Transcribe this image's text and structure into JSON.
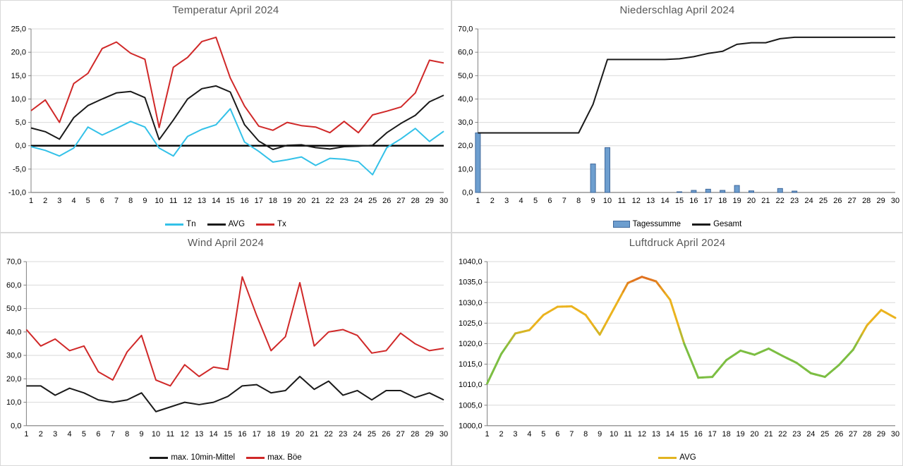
{
  "layout_colors": {
    "background": "#FFFFFF",
    "panel_border": "#D9D9D9",
    "grid": "#D9D9D9",
    "axis": "#808080",
    "title": "#595959",
    "text": "#000000"
  },
  "chart_data": [
    {
      "type": "line",
      "title": "Temperatur April 2024",
      "xlabel": "",
      "ylabel": "",
      "ylim": [
        -10,
        25
      ],
      "ytick_labels": [
        "25,0",
        "20,0",
        "15,0",
        "10,0",
        "5,0",
        "0,0",
        "-5,0",
        "-10,0"
      ],
      "ytick_values": [
        25,
        20,
        15,
        10,
        5,
        0,
        -5,
        -10
      ],
      "zero_axis": true,
      "grid": true,
      "legend_position": "bottom",
      "categories": [
        "1",
        "2",
        "3",
        "4",
        "5",
        "6",
        "7",
        "8",
        "9",
        "10",
        "11",
        "12",
        "13",
        "14",
        "15",
        "16",
        "17",
        "18",
        "19",
        "20",
        "21",
        "22",
        "23",
        "24",
        "25",
        "26",
        "27",
        "28",
        "29",
        "30"
      ],
      "series": [
        {
          "name": "Tn",
          "type": "line",
          "color": "#33C1E8",
          "values": [
            -0.2,
            -1.0,
            -2.2,
            -0.5,
            4.0,
            2.3,
            3.7,
            5.2,
            4.0,
            -0.5,
            -2.2,
            2.0,
            3.5,
            4.5,
            7.9,
            0.8,
            -1.2,
            -3.5,
            -3.0,
            -2.4,
            -4.2,
            -2.7,
            -2.9,
            -3.4,
            -6.2,
            -0.4,
            1.5,
            3.7,
            0.9,
            3.1
          ]
        },
        {
          "name": "AVG",
          "type": "line",
          "color": "#1A1A1A",
          "values": [
            3.8,
            3.0,
            1.4,
            6.0,
            8.6,
            10.0,
            11.3,
            11.6,
            10.3,
            1.3,
            5.5,
            10.0,
            12.2,
            12.8,
            11.5,
            4.5,
            1.0,
            -0.8,
            0.1,
            0.2,
            -0.4,
            -0.7,
            -0.2,
            -0.1,
            0.1,
            2.8,
            4.8,
            6.5,
            9.4,
            10.8
          ]
        },
        {
          "name": "Tx",
          "type": "line",
          "color": "#D02828",
          "values": [
            7.5,
            9.8,
            5.0,
            13.3,
            15.5,
            20.8,
            22.2,
            19.8,
            18.5,
            3.9,
            16.8,
            18.9,
            22.3,
            23.2,
            14.5,
            8.5,
            4.2,
            3.3,
            5.0,
            4.3,
            4.0,
            2.8,
            5.2,
            2.8,
            6.6,
            7.4,
            8.3,
            11.3,
            18.3,
            17.7
          ]
        }
      ]
    },
    {
      "type": "bar",
      "title": "Niederschlag April 2024",
      "xlabel": "",
      "ylabel": "",
      "ylim": [
        0,
        70
      ],
      "ytick_labels": [
        "70,0",
        "60,0",
        "50,0",
        "40,0",
        "30,0",
        "20,0",
        "10,0",
        "0,0"
      ],
      "ytick_values": [
        70,
        60,
        50,
        40,
        30,
        20,
        10,
        0
      ],
      "zero_axis": false,
      "grid": true,
      "legend_position": "bottom",
      "categories": [
        "1",
        "2",
        "3",
        "4",
        "5",
        "6",
        "7",
        "8",
        "9",
        "10",
        "11",
        "12",
        "13",
        "14",
        "15",
        "16",
        "17",
        "18",
        "19",
        "20",
        "21",
        "22",
        "23",
        "24",
        "25",
        "26",
        "27",
        "28",
        "29",
        "30"
      ],
      "series": [
        {
          "name": "Tagessumme",
          "type": "bar",
          "color": "#6D9ECF",
          "border_color": "#40699C",
          "values": [
            25.5,
            0,
            0,
            0,
            0,
            0,
            0,
            0,
            12.2,
            19.2,
            0,
            0,
            0,
            0,
            0.3,
            0.9,
            1.4,
            0.9,
            3.0,
            0.7,
            0,
            1.7,
            0.6,
            0,
            0,
            0,
            0,
            0,
            0,
            0
          ]
        },
        {
          "name": "Gesamt",
          "type": "line",
          "color": "#1A1A1A",
          "values": [
            25.5,
            25.5,
            25.5,
            25.5,
            25.5,
            25.5,
            25.5,
            25.5,
            37.7,
            56.9,
            56.9,
            56.9,
            56.9,
            56.9,
            57.2,
            58.1,
            59.5,
            60.4,
            63.4,
            64.1,
            64.1,
            65.8,
            66.4,
            66.4,
            66.4,
            66.4,
            66.4,
            66.4,
            66.4,
            66.4
          ]
        }
      ]
    },
    {
      "type": "line",
      "title": "Wind April 2024",
      "xlabel": "",
      "ylabel": "",
      "ylim": [
        0,
        70
      ],
      "ytick_labels": [
        "70,0",
        "60,0",
        "50,0",
        "40,0",
        "30,0",
        "20,0",
        "10,0",
        "0,0"
      ],
      "ytick_values": [
        70,
        60,
        50,
        40,
        30,
        20,
        10,
        0
      ],
      "zero_axis": false,
      "grid": true,
      "legend_position": "bottom",
      "categories": [
        "1",
        "2",
        "3",
        "4",
        "5",
        "6",
        "7",
        "8",
        "9",
        "10",
        "11",
        "12",
        "13",
        "14",
        "15",
        "16",
        "17",
        "18",
        "19",
        "20",
        "21",
        "22",
        "23",
        "24",
        "25",
        "26",
        "27",
        "28",
        "29",
        "30"
      ],
      "series": [
        {
          "name": "max. 10min-Mittel",
          "type": "line",
          "color": "#1A1A1A",
          "values": [
            17,
            17,
            13,
            16,
            14,
            11,
            10,
            11,
            14,
            6,
            8,
            10,
            9,
            10,
            12.5,
            17,
            17.5,
            14,
            15,
            21,
            15.5,
            19,
            13,
            15,
            11,
            15,
            15,
            12,
            14,
            11
          ]
        },
        {
          "name": "max. Böe",
          "type": "line",
          "color": "#D02828",
          "values": [
            41,
            34,
            37,
            32,
            34,
            23,
            19.5,
            31.5,
            38.5,
            19.5,
            17,
            26,
            21,
            25,
            24,
            63.5,
            47,
            32,
            38,
            61,
            34,
            40,
            41,
            38.5,
            31,
            32,
            39.5,
            35,
            32,
            33
          ]
        }
      ]
    },
    {
      "type": "line",
      "title": "Luftdruck April 2024",
      "xlabel": "",
      "ylabel": "",
      "ylim": [
        1000,
        1040
      ],
      "ytick_labels": [
        "1040,0",
        "1035,0",
        "1030,0",
        "1025,0",
        "1020,0",
        "1015,0",
        "1010,0",
        "1005,0",
        "1000,0"
      ],
      "ytick_values": [
        1040,
        1035,
        1030,
        1025,
        1020,
        1015,
        1010,
        1005,
        1000
      ],
      "zero_axis": false,
      "grid": true,
      "legend_position": "bottom",
      "categories": [
        "1",
        "2",
        "3",
        "4",
        "5",
        "6",
        "7",
        "8",
        "9",
        "10",
        "11",
        "12",
        "13",
        "14",
        "15",
        "16",
        "17",
        "18",
        "19",
        "20",
        "21",
        "22",
        "23",
        "24",
        "25",
        "26",
        "27",
        "28",
        "29",
        "30"
      ],
      "series": [
        {
          "name": "AVG",
          "type": "line",
          "color": "#E2B420",
          "stroke_width": 3,
          "colorscale": [
            [
              1012,
              "#7CBE42"
            ],
            [
              1019,
              "#7CBE42"
            ],
            [
              1024,
              "#EBB31E"
            ],
            [
              1031,
              "#EBB31E"
            ],
            [
              1036,
              "#E0711F"
            ]
          ],
          "values": [
            1010.3,
            1017.5,
            1022.5,
            1023.3,
            1027.0,
            1029.0,
            1029.1,
            1027.0,
            1022.2,
            1028.5,
            1034.8,
            1036.3,
            1035.2,
            1030.7,
            1020.0,
            1011.7,
            1011.9,
            1016.0,
            1018.3,
            1017.3,
            1018.8,
            1017.0,
            1015.3,
            1012.8,
            1011.9,
            1014.8,
            1018.5,
            1024.5,
            1028.2,
            1026.3
          ]
        }
      ]
    }
  ]
}
